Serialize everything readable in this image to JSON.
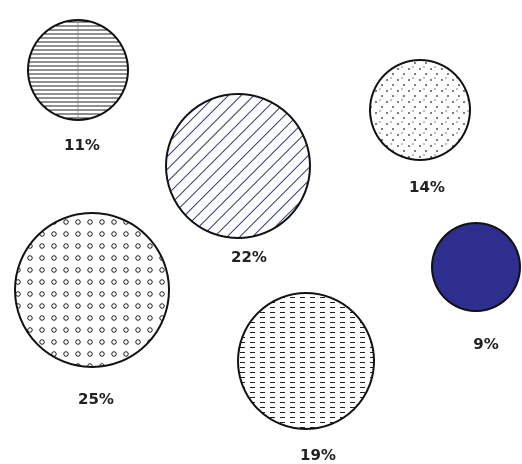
{
  "chart_data": {
    "type": "bubble",
    "title": "",
    "series": [
      {
        "label": "11%",
        "value": 11,
        "pattern": "horizontal-lines",
        "fill_color": "#222222"
      },
      {
        "label": "22%",
        "value": 22,
        "pattern": "diagonal-lines",
        "fill_color": "#2b3a7a"
      },
      {
        "label": "14%",
        "value": 14,
        "pattern": "dots",
        "fill_color": "#222222"
      },
      {
        "label": "25%",
        "value": 25,
        "pattern": "circles",
        "fill_color": "#222222"
      },
      {
        "label": "19%",
        "value": 19,
        "pattern": "dashes",
        "fill_color": "#222222"
      },
      {
        "label": "9%",
        "value": 9,
        "pattern": "solid",
        "fill_color": "#2e2e8f"
      }
    ]
  },
  "colors": {
    "outline": "#111111",
    "label_text": "#222222",
    "background": "#ffffff"
  }
}
